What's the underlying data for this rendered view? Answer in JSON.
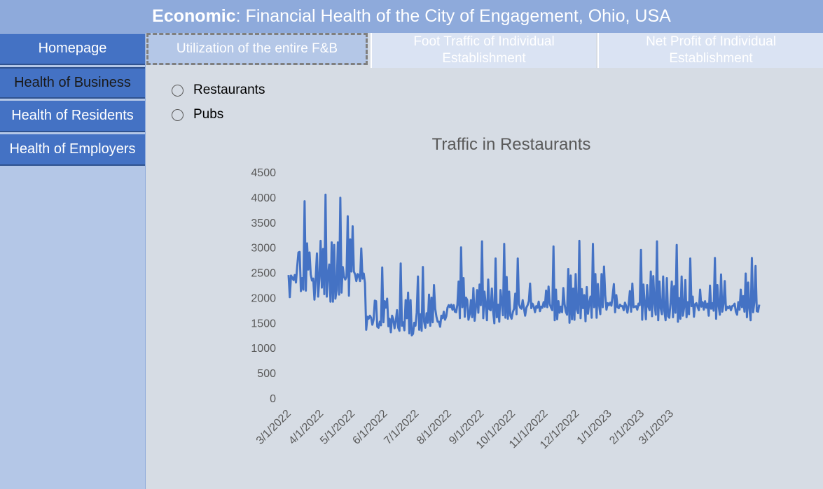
{
  "header": {
    "title_bold": "Economic",
    "title_rest": ": Financial Health of the City of Engagement, Ohio, USA"
  },
  "sidebar": {
    "items": [
      {
        "label": "Homepage",
        "active": false
      },
      {
        "label": "Health of Business",
        "active": true
      },
      {
        "label": "Health of Residents",
        "active": false
      },
      {
        "label": "Health of Employers",
        "active": false
      }
    ]
  },
  "tabs": [
    {
      "label": "Utilization of the entire F&B",
      "active": true
    },
    {
      "label": "Foot Traffic of Individual Establishment",
      "active": false
    },
    {
      "label": "Net Profit of Individual Establishment",
      "active": false
    }
  ],
  "filters": {
    "options": [
      {
        "label": "Restaurants",
        "selected": false
      },
      {
        "label": "Pubs",
        "selected": false
      }
    ]
  },
  "colors": {
    "header_bg": "#8eaadb",
    "nav_bg": "#4472c4",
    "sidebar_bg": "#b4c7e7",
    "content_bg": "#d6dce4",
    "line": "#4472c4"
  },
  "chart_data": {
    "type": "line",
    "title": "Traffic in Restaurants",
    "xlabel": "",
    "ylabel": "",
    "ylim": [
      0,
      4500
    ],
    "yticks": [
      0,
      500,
      1000,
      1500,
      2000,
      2500,
      3000,
      3500,
      4000,
      4500
    ],
    "xticks": [
      "3/1/2022",
      "4/1/2022",
      "5/1/2022",
      "6/1/2022",
      "7/1/2022",
      "8/1/2022",
      "9/1/2022",
      "10/1/2022",
      "11/1/2022",
      "12/1/2022",
      "1/1/2023",
      "2/1/2023",
      "3/1/2023"
    ],
    "grid": false,
    "series": [
      {
        "name": "Traffic",
        "color": "#4472c4",
        "x_start": "3/1/2022",
        "x_end": "5/24/2023",
        "x_unit": "day",
        "values": [
          2450,
          2010,
          2440,
          2400,
          2350,
          2450,
          2300,
          2620,
          2900,
          2910,
          2130,
          2390,
          2160,
          3920,
          2140,
          3080,
          2560,
          2900,
          2460,
          2340,
          2380,
          1960,
          2380,
          2880,
          2020,
          2390,
          3130,
          2200,
          2970,
          2070,
          4050,
          2020,
          2450,
          2660,
          1920,
          3100,
          1920,
          3050,
          1980,
          2150,
          3100,
          2060,
          3990,
          2100,
          2610,
          2420,
          2360,
          2410,
          3620,
          2040,
          3160,
          2520,
          3420,
          2520,
          2460,
          2330,
          2470,
          2440,
          2330,
          2980,
          2380,
          2480,
          2290,
          1360,
          1620,
          1580,
          1640,
          1600,
          1460,
          1560,
          1940,
          1930,
          1420,
          1400,
          1520,
          1450,
          2600,
          1510,
          1930,
          1800,
          1980,
          1430,
          1580,
          1310,
          1640,
          1570,
          1390,
          1530,
          1750,
          1400,
          1340,
          2680,
          1440,
          1510,
          1350,
          1950,
          1590,
          2100,
          1290,
          1950,
          1250,
          1280,
          1500,
          1440,
          1700,
          2420,
          1360,
          1670,
          1340,
          2610,
          1520,
          1400,
          1690,
          1500,
          2060,
          1440,
          2000,
          1510,
          2250,
          1780,
          1620,
          1520,
          1520,
          1420,
          1640,
          1590,
          1720,
          1560,
          1630,
          1800,
          1850,
          1810,
          1860,
          1760,
          1850,
          1720,
          1710,
          1860,
          2320,
          1590,
          3000,
          1810,
          2390,
          1620,
          2000,
          1950,
          1560,
          1670,
          1950,
          1610,
          2190,
          1540,
          1800,
          2150,
          1700,
          2260,
          1850,
          3120,
          1590,
          2120,
          1860,
          1550,
          2360,
          1770,
          1750,
          2180,
          1730,
          1490,
          2780,
          1610,
          1860,
          1520,
          2150,
          1910,
          1650,
          3070,
          1600,
          2410,
          1580,
          2120,
          1640,
          1580,
          1710,
          1780,
          2080,
          1670,
          2780,
          1870,
          1800,
          1780,
          1950,
          1790,
          1640,
          1800,
          1850,
          1930,
          2280,
          1790,
          1880,
          1820,
          1710,
          1830,
          1800,
          1920,
          1730,
          1820,
          1800,
          1910,
          1820,
          2140,
          1810,
          2220,
          1870,
          1800,
          1750,
          3020,
          1550,
          2160,
          1570,
          1930,
          1700,
          1820,
          1710,
          2190,
          1870,
          1720,
          1660,
          2570,
          1500,
          2440,
          1570,
          2180,
          1560,
          2470,
          1760,
          1690,
          3130,
          1590,
          2170,
          1790,
          2050,
          1530,
          2210,
          1680,
          1900,
          2020,
          1600,
          3070,
          1810,
          2470,
          1600,
          2270,
          1850,
          1670,
          2470,
          1810,
          2620,
          2050,
          1760,
          1890,
          1850,
          1900,
          1840,
          2040,
          2270,
          1710,
          2050,
          1810,
          1790,
          1860,
          1830,
          1830,
          1750,
          1900,
          1830,
          1700,
          1860,
          2130,
          1720,
          2280,
          1810,
          1820,
          1830,
          1760,
          1880,
          1850,
          2950,
          1560,
          2260,
          1890,
          1570,
          2250,
          1820,
          1750,
          2520,
          1630,
          2430,
          1880,
          1660,
          3120,
          1550,
          2320,
          1790,
          1670,
          2420,
          1730,
          1550,
          2390,
          1630,
          1600,
          1900,
          2320,
          1610,
          2230,
          1700,
          3050,
          1520,
          1990,
          1580,
          2420,
          1640,
          1800,
          2350,
          1610,
          1910,
          1670,
          2780,
          1830,
          2020,
          1620,
          1870,
          1890,
          1810,
          1750,
          2160,
          1820,
          1910,
          1760,
          1930,
          1800,
          1880,
          1640,
          2240,
          1780,
          1890,
          1740,
          2790,
          1580,
          2250,
          1840,
          1660,
          2460,
          1720,
          1870,
          2330,
          1750,
          1820,
          1790,
          1830,
          1750,
          1830,
          1840,
          1880,
          1720,
          1660,
          1910,
          1760,
          2160,
          1810,
          2030,
          1720,
          2480,
          1610,
          2300,
          1780,
          1550,
          2790,
          1710,
          1900,
          2630,
          1730,
          1720,
          1860
        ]
      }
    ]
  }
}
